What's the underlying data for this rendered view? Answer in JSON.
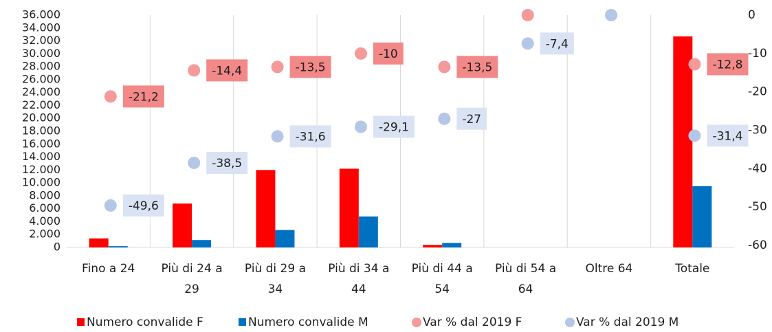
{
  "chart_data": {
    "type": "bar",
    "categories": [
      "Fino a 24",
      "Più di 24 a 29",
      "Più di 29 a 34",
      "Più di 34 a 44",
      "Più di 44 a 54",
      "Più di 54 a 64",
      "Oltre 64",
      "Totale"
    ],
    "series": [
      {
        "name": "Numero convalide F",
        "type": "bar",
        "color": "#ff0000",
        "values": [
          1400,
          6800,
          12000,
          12200,
          400,
          0,
          0,
          32700
        ]
      },
      {
        "name": "Numero convalide M",
        "type": "bar",
        "color": "#0070c0",
        "values": [
          200,
          1150,
          2700,
          4800,
          700,
          0,
          0,
          9500
        ]
      },
      {
        "name": "Var % dal 2019 F",
        "type": "scatter",
        "axis": "y2",
        "color": "#f59a9a",
        "label_color": "#f28888",
        "values": [
          -21.2,
          -14.4,
          -13.5,
          -10,
          -13.5,
          0,
          null,
          -12.8
        ],
        "value_labels": [
          "-21,2",
          "-14,4",
          "-13,5",
          "-10",
          "-13,5",
          null,
          null,
          "-12,8"
        ]
      },
      {
        "name": "Var % dal 2019 M",
        "type": "scatter",
        "axis": "y2",
        "color": "#b4c7e7",
        "label_color": "#dae3f3",
        "values": [
          -49.6,
          -38.5,
          -31.6,
          -29.1,
          -27,
          -7.4,
          0,
          -31.4
        ],
        "value_labels": [
          "-49,6",
          "-38,5",
          "-31,6",
          "-29,1",
          "-27",
          "-7,4",
          null,
          "-31,4"
        ]
      }
    ],
    "ylim": [
      0,
      36000
    ],
    "yticks": [
      0,
      {
        "value": 2000,
        "label": "2.000"
      },
      {
        "value": 4000,
        "label": "4.000"
      },
      {
        "value": 6000,
        "label": "6.000"
      },
      {
        "value": 8000,
        "label": "8.000"
      },
      {
        "value": 10000,
        "label": "10.000"
      },
      {
        "value": 12000,
        "label": "12.000"
      },
      {
        "value": 14000,
        "label": "14.000"
      },
      {
        "value": 16000,
        "label": "16.000"
      },
      {
        "value": 18000,
        "label": "18.000"
      },
      {
        "value": 20000,
        "label": "20.000"
      },
      {
        "value": 22000,
        "label": "22.000"
      },
      {
        "value": 24000,
        "label": "24.000"
      },
      {
        "value": 26000,
        "label": "26.000"
      },
      {
        "value": 28000,
        "label": "28.000"
      },
      {
        "value": 30000,
        "label": "30.000"
      },
      {
        "value": 32000,
        "label": "32.000"
      },
      {
        "value": 34000,
        "label": "34.000"
      },
      {
        "value": 36000,
        "label": "36.000"
      }
    ],
    "y2lim": [
      -60,
      0
    ],
    "y2ticks": [
      0,
      -10,
      -20,
      -30,
      -40,
      -50,
      -60
    ],
    "legend": "bottom"
  }
}
